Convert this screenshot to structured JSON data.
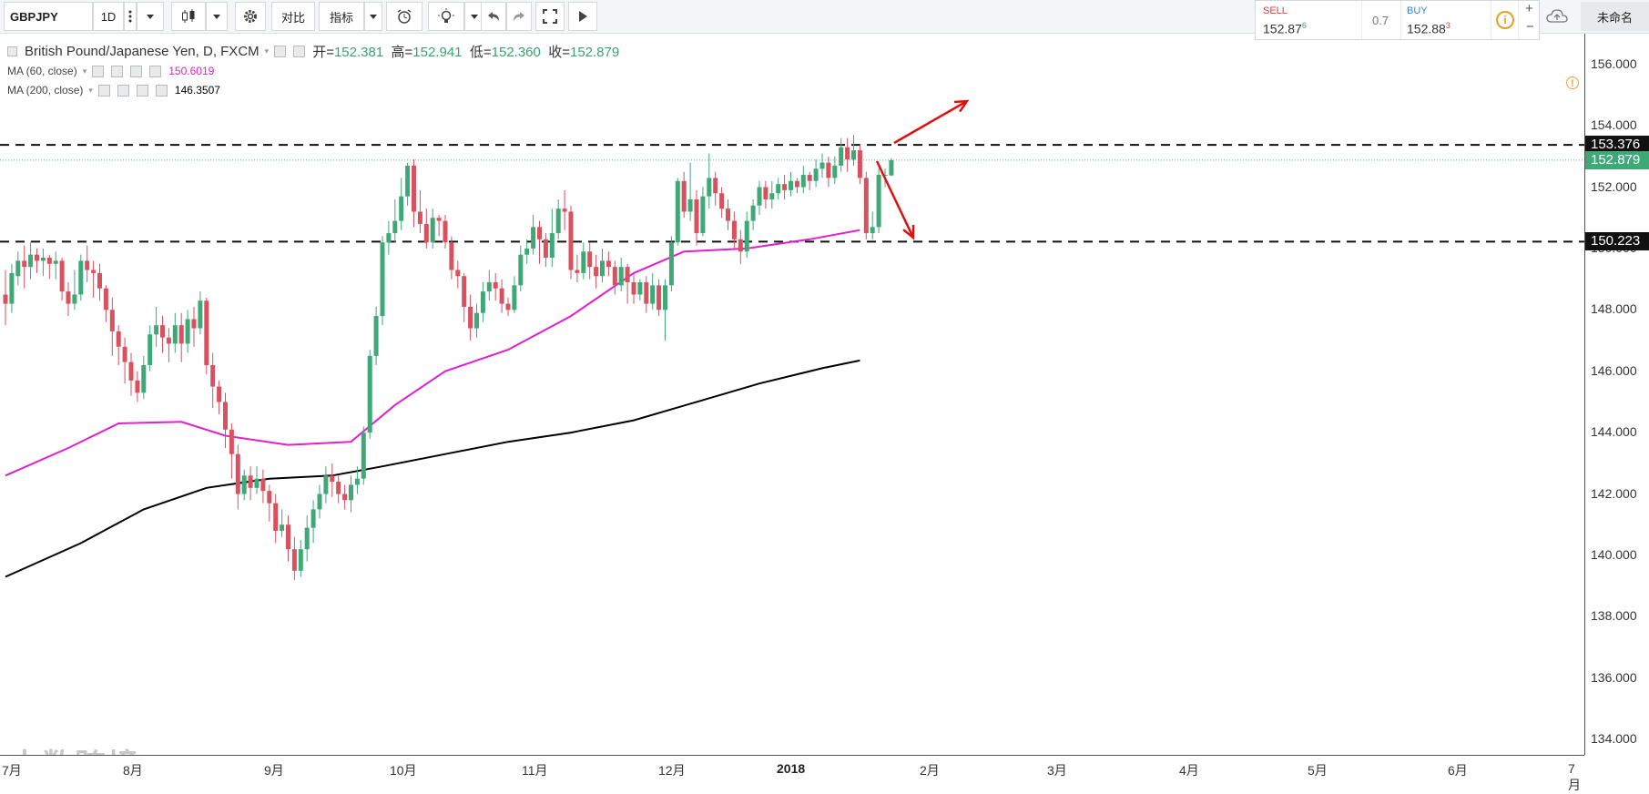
{
  "toolbar": {
    "symbol": "GBPJPY",
    "interval": "1D",
    "compare_label": "对比",
    "indicators_label": "指标",
    "layout_name": "未命名"
  },
  "trade": {
    "sell_label": "SELL",
    "sell_price_main": "152.87",
    "sell_price_sup": "6",
    "spread": "0.7",
    "buy_label": "BUY",
    "buy_price_main": "152.88",
    "buy_price_sup": "3",
    "sell_color": "#e23a3a",
    "buy_color": "#2e86d9"
  },
  "legend": {
    "title": "British Pound/Japanese Yen, D, FXCM",
    "open_label": "开=",
    "open_value": "152.381",
    "high_label": "高=",
    "high_value": "152.941",
    "low_label": "低=",
    "low_value": "152.360",
    "close_label": "收=",
    "close_value": "152.879",
    "ma60_label": "MA (60, close)",
    "ma60_value": "150.6019",
    "ma200_label": "MA (200, close)",
    "ma200_value": "146.3507"
  },
  "price_axis": {
    "ticks": [
      "156.000",
      "154.000",
      "152.000",
      "150.000",
      "148.000",
      "146.000",
      "144.000",
      "142.000",
      "140.000",
      "138.000",
      "136.000",
      "134.000"
    ],
    "resistance_tag": "153.376",
    "current_tag": "152.879",
    "support_tag": "150.223"
  },
  "time_axis": {
    "ticks": [
      "7月",
      "8月",
      "9月",
      "10月",
      "11月",
      "12月",
      "2018",
      "2月",
      "3月",
      "4月",
      "5月",
      "6月",
      "7月"
    ]
  },
  "watermark": "大数跨境",
  "colors": {
    "up": "#3fa877",
    "down": "#d9505e",
    "ma60": "#e020d0",
    "ma200": "#000000",
    "arrow": "#e01010"
  },
  "chart_data": {
    "type": "candlestick",
    "symbol": "GBPJPY",
    "ylim": [
      133.5,
      157
    ],
    "levels": [
      153.376,
      150.223
    ],
    "current": 152.879,
    "candles": [
      [
        148.5,
        148.2,
        147.5,
        149.3
      ],
      [
        148.2,
        149.2,
        147.9,
        149.5
      ],
      [
        149.1,
        149.6,
        148.8,
        149.9
      ],
      [
        149.6,
        149.4,
        148.7,
        150.1
      ],
      [
        149.4,
        149.8,
        149.0,
        150.2
      ],
      [
        149.8,
        149.6,
        149.2,
        150.0
      ],
      [
        149.6,
        149.7,
        149.1,
        150.0
      ],
      [
        149.7,
        149.5,
        149.0,
        149.8
      ],
      [
        149.5,
        149.6,
        149.0,
        149.9
      ],
      [
        149.6,
        148.6,
        148.3,
        149.7
      ],
      [
        148.6,
        148.2,
        147.8,
        148.9
      ],
      [
        148.2,
        148.5,
        148.0,
        149.3
      ],
      [
        148.5,
        149.6,
        148.3,
        149.8
      ],
      [
        149.6,
        149.3,
        148.9,
        150.1
      ],
      [
        149.3,
        149.2,
        148.4,
        149.6
      ],
      [
        149.2,
        148.7,
        148.3,
        149.5
      ],
      [
        148.7,
        148.0,
        147.6,
        148.8
      ],
      [
        148.0,
        147.3,
        146.5,
        148.4
      ],
      [
        147.3,
        146.8,
        146.2,
        147.5
      ],
      [
        146.8,
        146.3,
        145.6,
        147.1
      ],
      [
        146.3,
        145.7,
        145.2,
        146.6
      ],
      [
        145.7,
        145.3,
        145.0,
        146.0
      ],
      [
        145.3,
        146.2,
        145.1,
        146.5
      ],
      [
        146.2,
        147.2,
        146.0,
        147.5
      ],
      [
        147.2,
        147.5,
        146.8,
        148.1
      ],
      [
        147.5,
        147.1,
        146.6,
        147.8
      ],
      [
        147.1,
        146.9,
        146.3,
        147.4
      ],
      [
        146.9,
        147.5,
        146.6,
        147.9
      ],
      [
        147.5,
        146.9,
        146.3,
        147.9
      ],
      [
        146.9,
        147.7,
        146.6,
        148.0
      ],
      [
        147.7,
        147.4,
        146.8,
        148.1
      ],
      [
        147.4,
        148.3,
        147.2,
        148.6
      ],
      [
        148.3,
        146.2,
        145.9,
        148.4
      ],
      [
        146.2,
        145.5,
        144.8,
        146.6
      ],
      [
        145.5,
        145.0,
        144.6,
        145.7
      ],
      [
        145.0,
        144.1,
        143.5,
        145.3
      ],
      [
        144.1,
        143.3,
        142.5,
        144.3
      ],
      [
        143.3,
        142.0,
        141.5,
        143.6
      ],
      [
        142.0,
        142.6,
        141.8,
        142.8
      ],
      [
        142.6,
        142.2,
        141.8,
        142.9
      ],
      [
        142.2,
        142.5,
        142.0,
        142.9
      ],
      [
        142.5,
        142.1,
        141.7,
        142.8
      ],
      [
        142.1,
        141.7,
        141.1,
        142.3
      ],
      [
        141.7,
        140.8,
        140.4,
        142.0
      ],
      [
        140.8,
        141.0,
        140.6,
        141.5
      ],
      [
        141.0,
        140.2,
        139.8,
        141.3
      ],
      [
        140.2,
        139.5,
        139.2,
        140.6
      ],
      [
        139.5,
        140.2,
        139.3,
        140.5
      ],
      [
        140.2,
        140.9,
        139.8,
        141.3
      ],
      [
        140.9,
        141.5,
        140.4,
        141.8
      ],
      [
        141.5,
        142.0,
        141.2,
        142.3
      ],
      [
        142.0,
        142.6,
        141.7,
        142.9
      ],
      [
        142.6,
        142.4,
        141.9,
        143.0
      ],
      [
        142.4,
        142.0,
        141.7,
        142.6
      ],
      [
        142.0,
        141.8,
        141.5,
        142.3
      ],
      [
        141.8,
        142.3,
        141.4,
        142.6
      ],
      [
        142.3,
        142.5,
        142.0,
        142.9
      ],
      [
        142.5,
        144.0,
        142.3,
        144.2
      ],
      [
        144.0,
        146.5,
        143.8,
        146.7
      ],
      [
        146.5,
        147.8,
        146.2,
        148.1
      ],
      [
        147.8,
        150.2,
        147.5,
        150.4
      ],
      [
        150.2,
        150.5,
        149.8,
        150.9
      ],
      [
        150.5,
        150.9,
        150.2,
        151.6
      ],
      [
        150.9,
        151.7,
        150.6,
        152.3
      ],
      [
        151.7,
        152.7,
        151.4,
        152.8
      ],
      [
        152.7,
        151.2,
        150.7,
        152.9
      ],
      [
        151.2,
        150.8,
        150.5,
        151.9
      ],
      [
        150.8,
        150.2,
        150.0,
        151.3
      ],
      [
        150.2,
        151.0,
        150.0,
        151.3
      ],
      [
        151.0,
        150.9,
        150.4,
        151.1
      ],
      [
        150.9,
        150.2,
        150.0,
        151.1
      ],
      [
        150.2,
        149.3,
        149.0,
        150.4
      ],
      [
        149.3,
        149.1,
        148.7,
        149.6
      ],
      [
        149.1,
        148.1,
        147.6,
        149.2
      ],
      [
        148.1,
        147.4,
        147.0,
        148.5
      ],
      [
        147.4,
        147.9,
        147.1,
        148.2
      ],
      [
        147.9,
        148.6,
        147.6,
        148.9
      ],
      [
        148.6,
        148.9,
        148.3,
        149.3
      ],
      [
        148.9,
        148.7,
        148.3,
        149.2
      ],
      [
        148.7,
        148.2,
        147.9,
        149.0
      ],
      [
        148.2,
        148.0,
        147.8,
        148.4
      ],
      [
        148.0,
        148.8,
        147.9,
        149.1
      ],
      [
        148.8,
        149.8,
        148.6,
        150.1
      ],
      [
        149.8,
        150.0,
        149.5,
        150.3
      ],
      [
        150.0,
        150.7,
        149.8,
        151.1
      ],
      [
        150.7,
        150.3,
        149.5,
        150.9
      ],
      [
        150.3,
        149.7,
        149.4,
        150.5
      ],
      [
        149.7,
        150.5,
        149.4,
        151.3
      ],
      [
        150.5,
        151.3,
        150.3,
        151.6
      ],
      [
        151.3,
        151.2,
        150.6,
        151.9
      ],
      [
        151.2,
        149.3,
        149.0,
        151.4
      ],
      [
        149.3,
        149.2,
        148.9,
        149.8
      ],
      [
        149.2,
        149.9,
        149.0,
        150.2
      ],
      [
        149.9,
        149.4,
        149.0,
        150.2
      ],
      [
        149.4,
        149.1,
        148.7,
        149.8
      ],
      [
        149.1,
        149.6,
        148.9,
        150.0
      ],
      [
        149.6,
        149.4,
        149.1,
        149.9
      ],
      [
        149.4,
        148.8,
        148.5,
        149.6
      ],
      [
        148.8,
        149.4,
        148.6,
        149.7
      ],
      [
        149.4,
        148.9,
        148.2,
        149.5
      ],
      [
        148.9,
        148.5,
        148.2,
        149.2
      ],
      [
        148.5,
        148.9,
        148.3,
        149.0
      ],
      [
        148.9,
        148.2,
        147.9,
        149.1
      ],
      [
        148.2,
        148.8,
        148.0,
        149.2
      ],
      [
        148.8,
        148.0,
        147.8,
        149.0
      ],
      [
        148.0,
        148.8,
        147.0,
        149.0
      ],
      [
        148.8,
        150.2,
        148.6,
        150.4
      ],
      [
        150.2,
        152.2,
        150.1,
        152.3
      ],
      [
        152.2,
        151.2,
        151.0,
        152.5
      ],
      [
        151.2,
        151.6,
        150.9,
        152.8
      ],
      [
        151.6,
        150.5,
        150.1,
        151.9
      ],
      [
        150.5,
        151.7,
        150.4,
        152.0
      ],
      [
        151.7,
        152.3,
        151.3,
        153.1
      ],
      [
        152.3,
        151.8,
        151.4,
        152.5
      ],
      [
        151.8,
        151.3,
        151.0,
        152.0
      ],
      [
        151.3,
        150.9,
        150.6,
        151.6
      ],
      [
        150.9,
        150.3,
        150.0,
        151.2
      ],
      [
        150.3,
        149.9,
        149.5,
        150.6
      ],
      [
        149.9,
        150.9,
        149.7,
        151.2
      ],
      [
        150.9,
        151.4,
        150.6,
        151.6
      ],
      [
        151.4,
        152.0,
        151.1,
        152.2
      ],
      [
        152.0,
        151.6,
        151.3,
        152.2
      ],
      [
        151.6,
        151.8,
        151.3,
        152.2
      ],
      [
        151.8,
        152.1,
        151.6,
        152.3
      ],
      [
        152.1,
        151.9,
        151.6,
        152.4
      ],
      [
        151.9,
        152.2,
        151.7,
        152.5
      ],
      [
        152.2,
        152.0,
        151.8,
        152.3
      ],
      [
        152.0,
        152.4,
        151.8,
        152.7
      ],
      [
        152.4,
        152.2,
        151.9,
        152.5
      ],
      [
        152.2,
        152.6,
        152.0,
        152.9
      ],
      [
        152.6,
        152.8,
        152.3,
        153.1
      ],
      [
        152.8,
        152.3,
        152.0,
        153.0
      ],
      [
        152.3,
        152.7,
        152.1,
        153.0
      ],
      [
        152.7,
        153.3,
        152.5,
        153.6
      ],
      [
        153.3,
        152.9,
        152.5,
        153.6
      ],
      [
        152.9,
        153.2,
        152.7,
        153.7
      ],
      [
        153.2,
        152.3,
        152.1,
        153.4
      ],
      [
        152.3,
        150.5,
        150.3,
        152.5
      ],
      [
        150.5,
        150.7,
        150.3,
        151.2
      ],
      [
        150.7,
        152.4,
        150.5,
        152.6
      ],
      [
        152.4,
        152.4,
        152.0,
        152.6
      ],
      [
        152.381,
        152.879,
        152.36,
        152.941
      ]
    ],
    "ma60": [
      [
        0,
        142.6
      ],
      [
        10,
        143.5
      ],
      [
        18,
        144.3
      ],
      [
        28,
        144.35
      ],
      [
        35,
        143.9
      ],
      [
        45,
        143.6
      ],
      [
        55,
        143.7
      ],
      [
        62,
        144.9
      ],
      [
        70,
        146.0
      ],
      [
        80,
        146.7
      ],
      [
        90,
        147.8
      ],
      [
        100,
        149.2
      ],
      [
        108,
        149.9
      ],
      [
        118,
        150.0
      ],
      [
        128,
        150.3
      ],
      [
        136,
        150.6
      ]
    ],
    "ma200": [
      [
        0,
        139.3
      ],
      [
        12,
        140.4
      ],
      [
        22,
        141.5
      ],
      [
        32,
        142.2
      ],
      [
        42,
        142.5
      ],
      [
        52,
        142.6
      ],
      [
        60,
        142.9
      ],
      [
        70,
        143.3
      ],
      [
        80,
        143.7
      ],
      [
        90,
        144.0
      ],
      [
        100,
        144.4
      ],
      [
        110,
        145.0
      ],
      [
        120,
        145.6
      ],
      [
        130,
        146.1
      ],
      [
        136,
        146.35
      ]
    ]
  }
}
